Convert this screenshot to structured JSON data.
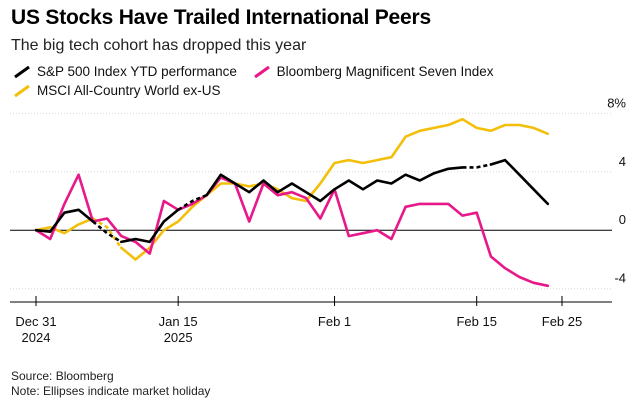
{
  "title": "US Stocks Have Trailed International Peers",
  "subtitle": "The big tech cohort has dropped this year",
  "source": "Source: Bloomberg",
  "note": "Note: Ellipses indicate market holiday",
  "chart_data": {
    "type": "line",
    "ylim": [
      -4.5,
      8.5
    ],
    "yticks": [
      {
        "value": 8,
        "label": "8%"
      },
      {
        "value": 4,
        "label": "4"
      },
      {
        "value": 0,
        "label": "0"
      },
      {
        "value": -4,
        "label": "-4"
      }
    ],
    "xticks": [
      {
        "x": 0,
        "line1": "Dec 31",
        "line2": "2024"
      },
      {
        "x": 10,
        "line1": "Jan 15",
        "line2": "2025"
      },
      {
        "x": 21,
        "line1": "Feb 1",
        "line2": ""
      },
      {
        "x": 31,
        "line1": "Feb 15",
        "line2": ""
      },
      {
        "x": 37,
        "line1": "Feb 25",
        "line2": ""
      }
    ],
    "xlim": [
      0,
      37
    ],
    "legend": [
      "S&P 500 Index YTD performance",
      "Bloomberg Magnificent Seven Index",
      "MSCI All-Country World ex-US"
    ],
    "series": [
      {
        "name": "S&P 500 Index YTD performance",
        "color": "#000000",
        "x": [
          0,
          1,
          2,
          3,
          4,
          5,
          6,
          7,
          8,
          9,
          10,
          11,
          12,
          13,
          14,
          15,
          16,
          17,
          18,
          19,
          20,
          21,
          22,
          23,
          24,
          25,
          26,
          27,
          28,
          29,
          30,
          31,
          32,
          33,
          34,
          35,
          36
        ],
        "values": [
          0,
          -0.1,
          1.2,
          1.4,
          0.6,
          -0.2,
          -0.8,
          -0.6,
          -0.8,
          0.6,
          1.4,
          2.0,
          2.4,
          3.8,
          3.2,
          2.6,
          3.4,
          2.6,
          3.2,
          2.6,
          2.0,
          2.8,
          3.4,
          2.8,
          3.4,
          3.2,
          3.8,
          3.4,
          3.9,
          4.2,
          4.3,
          4.3,
          4.5,
          4.8,
          3.8,
          2.8,
          1.8
        ],
        "dashed_segments": [
          [
            4,
            6
          ],
          [
            10,
            12
          ],
          [
            30,
            32
          ]
        ]
      },
      {
        "name": "Bloomberg Magnificent Seven Index",
        "color": "#e8178a",
        "x": [
          0,
          1,
          2,
          3,
          4,
          5,
          6,
          7,
          8,
          9,
          10,
          11,
          12,
          13,
          14,
          15,
          16,
          17,
          18,
          19,
          20,
          21,
          22,
          23,
          24,
          25,
          26,
          27,
          28,
          29,
          30,
          31,
          32,
          33,
          34,
          35,
          36
        ],
        "values": [
          0,
          -0.6,
          1.8,
          3.8,
          0.6,
          0.8,
          -0.4,
          -0.8,
          -1.6,
          2.0,
          1.4,
          1.8,
          2.4,
          3.6,
          3.2,
          0.6,
          3.2,
          2.4,
          2.6,
          2.2,
          0.8,
          2.8,
          -0.4,
          -0.2,
          0.0,
          -0.6,
          1.6,
          1.8,
          1.8,
          1.8,
          1.0,
          1.2,
          -1.8,
          -2.6,
          -3.2,
          -3.6,
          -3.8
        ],
        "dashed_segments": []
      },
      {
        "name": "MSCI All-Country World ex-US",
        "color": "#f3bf0a",
        "x": [
          0,
          1,
          2,
          3,
          4,
          5,
          6,
          7,
          8,
          9,
          10,
          11,
          12,
          13,
          14,
          15,
          16,
          17,
          18,
          19,
          20,
          21,
          22,
          23,
          24,
          25,
          26,
          27,
          28,
          29,
          30,
          31,
          32,
          33,
          34,
          35,
          36
        ],
        "values": [
          0,
          0.2,
          -0.2,
          0.4,
          0.8,
          0.2,
          -1.2,
          -2.0,
          -1.2,
          0.0,
          0.6,
          1.6,
          2.4,
          3.2,
          3.2,
          3.0,
          3.2,
          2.8,
          2.2,
          2.0,
          3.2,
          4.6,
          4.8,
          4.6,
          4.8,
          5.0,
          6.4,
          6.8,
          7.0,
          7.2,
          7.6,
          7.0,
          6.8,
          7.2,
          7.2,
          7.0,
          6.6
        ],
        "dashed_segments": [
          [
            4,
            6
          ]
        ]
      }
    ]
  }
}
